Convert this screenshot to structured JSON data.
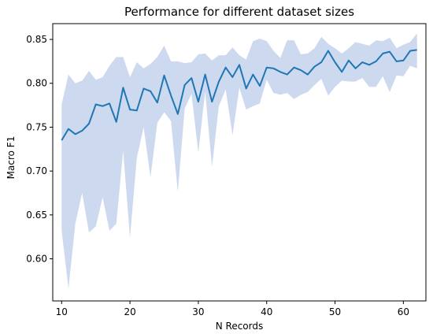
{
  "chart_data": {
    "type": "line",
    "title": "Performance for different dataset sizes",
    "xlabel": "N Records",
    "ylabel": "Macro F1",
    "xlim": [
      8.7,
      63.3
    ],
    "ylim": [
      0.552,
      0.868
    ],
    "xticks": [
      10,
      20,
      30,
      40,
      50,
      60
    ],
    "yticks": [
      0.6,
      0.65,
      0.7,
      0.75,
      0.8,
      0.85
    ],
    "ytick_labels": [
      "0.60",
      "0.65",
      "0.70",
      "0.75",
      "0.80",
      "0.85"
    ],
    "line_color": "#1f77b4",
    "band_color": "#cdd9ef",
    "grid": false,
    "legend": "none",
    "x": [
      10,
      11,
      12,
      13,
      14,
      15,
      16,
      17,
      18,
      19,
      20,
      21,
      22,
      23,
      24,
      25,
      26,
      27,
      28,
      29,
      30,
      31,
      32,
      33,
      34,
      35,
      36,
      37,
      38,
      39,
      40,
      41,
      42,
      43,
      44,
      45,
      46,
      47,
      48,
      49,
      50,
      51,
      52,
      53,
      54,
      55,
      56,
      57,
      58,
      59,
      60,
      61,
      62
    ],
    "mean": [
      0.735,
      0.748,
      0.742,
      0.746,
      0.754,
      0.776,
      0.774,
      0.777,
      0.756,
      0.795,
      0.77,
      0.769,
      0.794,
      0.791,
      0.778,
      0.809,
      0.786,
      0.765,
      0.798,
      0.806,
      0.779,
      0.81,
      0.779,
      0.802,
      0.818,
      0.807,
      0.821,
      0.794,
      0.81,
      0.797,
      0.818,
      0.817,
      0.813,
      0.81,
      0.818,
      0.815,
      0.81,
      0.819,
      0.824,
      0.837,
      0.824,
      0.813,
      0.826,
      0.817,
      0.824,
      0.821,
      0.825,
      0.834,
      0.836,
      0.825,
      0.826,
      0.837,
      0.838
    ],
    "upper": [
      0.776,
      0.81,
      0.8,
      0.803,
      0.814,
      0.804,
      0.807,
      0.82,
      0.83,
      0.83,
      0.807,
      0.824,
      0.817,
      0.822,
      0.83,
      0.843,
      0.825,
      0.825,
      0.823,
      0.824,
      0.833,
      0.834,
      0.826,
      0.832,
      0.832,
      0.841,
      0.832,
      0.827,
      0.848,
      0.851,
      0.848,
      0.837,
      0.829,
      0.849,
      0.849,
      0.833,
      0.834,
      0.84,
      0.853,
      0.845,
      0.84,
      0.834,
      0.84,
      0.847,
      0.845,
      0.843,
      0.849,
      0.848,
      0.852,
      0.84,
      0.844,
      0.847,
      0.857
    ],
    "lower": [
      0.632,
      0.566,
      0.64,
      0.675,
      0.63,
      0.637,
      0.67,
      0.632,
      0.64,
      0.723,
      0.624,
      0.715,
      0.75,
      0.693,
      0.755,
      0.767,
      0.757,
      0.676,
      0.771,
      0.788,
      0.721,
      0.791,
      0.705,
      0.774,
      0.793,
      0.741,
      0.795,
      0.77,
      0.774,
      0.777,
      0.804,
      0.789,
      0.787,
      0.789,
      0.782,
      0.787,
      0.79,
      0.798,
      0.805,
      0.786,
      0.796,
      0.803,
      0.802,
      0.802,
      0.806,
      0.796,
      0.796,
      0.808,
      0.79,
      0.809,
      0.808,
      0.82,
      0.817
    ]
  }
}
